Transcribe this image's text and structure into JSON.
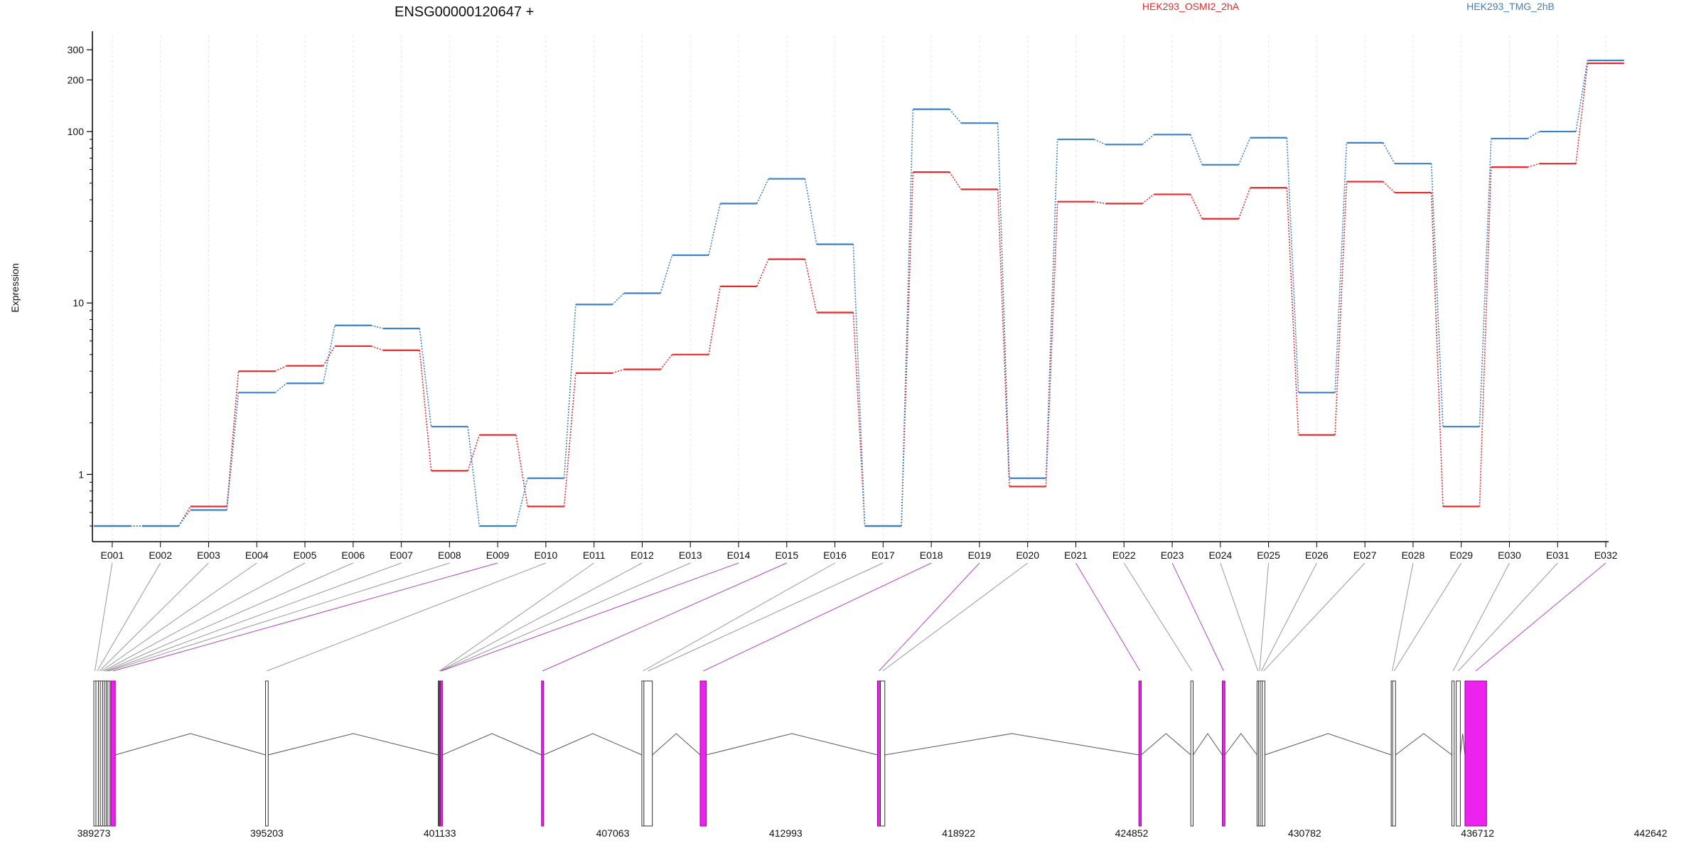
{
  "title": "ENSG00000120647 +",
  "ylabel": "Expression",
  "chart_data": {
    "type": "line",
    "title": "ENSG00000120647 +",
    "ylabel": "Expression",
    "y_scale": "log",
    "ylim": [
      0.5,
      330
    ],
    "grid": "vertical-dotted",
    "legend": "top-right",
    "yticks": [
      1,
      10,
      100,
      200,
      300
    ],
    "categories": [
      "E001",
      "E002",
      "E003",
      "E004",
      "E005",
      "E006",
      "E007",
      "E008",
      "E009",
      "E010",
      "E011",
      "E012",
      "E013",
      "E014",
      "E015",
      "E016",
      "E017",
      "E018",
      "E019",
      "E020",
      "E021",
      "E022",
      "E023",
      "E024",
      "E025",
      "E026",
      "E027",
      "E028",
      "E029",
      "E030",
      "E031",
      "E032"
    ],
    "series": [
      {
        "name": "HEK293_OSMI2_2hA",
        "color": "#e8282c",
        "values": [
          0.5,
          0.5,
          0.65,
          4.0,
          4.3,
          5.6,
          5.3,
          1.05,
          1.7,
          0.65,
          3.9,
          4.1,
          5.0,
          12.5,
          18.0,
          8.8,
          0.5,
          58,
          46,
          0.85,
          39,
          38,
          43,
          31,
          47,
          1.7,
          51,
          44,
          0.65,
          62,
          65,
          250
        ]
      },
      {
        "name": "HEK293_TMG_2hB",
        "color": "#3b82c4",
        "values": [
          0.5,
          0.5,
          0.62,
          3.0,
          3.4,
          7.4,
          7.1,
          1.9,
          0.5,
          0.95,
          9.8,
          11.4,
          19,
          38,
          53,
          22,
          0.5,
          135,
          112,
          0.95,
          90,
          84,
          96,
          64,
          92,
          3.0,
          86,
          65,
          1.9,
          91,
          100,
          260
        ]
      }
    ]
  },
  "genomic_axis": {
    "ticks": [
      "389273",
      "395203",
      "401133",
      "407063",
      "412993",
      "418922",
      "424852",
      "430782",
      "436712",
      "442642"
    ],
    "range": [
      389273,
      442642
    ]
  },
  "exon_map": {
    "highlight_color": "#ee22ee",
    "exon_color": "#ffffff",
    "line_color": "#555555",
    "highlight_link_color": "#b444c4",
    "exons": [
      {
        "id": "E001",
        "start": 389273,
        "end": 389345,
        "highlight": false
      },
      {
        "id": "E002",
        "start": 389345,
        "end": 389430,
        "highlight": false
      },
      {
        "id": "E003",
        "start": 389430,
        "end": 389495,
        "highlight": false
      },
      {
        "id": "E004",
        "start": 389495,
        "end": 389575,
        "highlight": false
      },
      {
        "id": "E005",
        "start": 389575,
        "end": 389640,
        "highlight": false
      },
      {
        "id": "E006",
        "start": 389640,
        "end": 389700,
        "highlight": false
      },
      {
        "id": "E007",
        "start": 389700,
        "end": 389755,
        "highlight": false
      },
      {
        "id": "E008",
        "start": 389755,
        "end": 389800,
        "highlight": false
      },
      {
        "id": "E009",
        "start": 389860,
        "end": 390010,
        "highlight": true
      },
      {
        "id": "E010",
        "start": 395160,
        "end": 395250,
        "highlight": false
      },
      {
        "id": "E011",
        "start": 401080,
        "end": 401110,
        "highlight": false
      },
      {
        "id": "E012",
        "start": 401110,
        "end": 401130,
        "highlight": false
      },
      {
        "id": "E013",
        "start": 401130,
        "end": 401150,
        "highlight": false
      },
      {
        "id": "E014",
        "start": 401150,
        "end": 401170,
        "highlight": true
      },
      {
        "id": "E015",
        "start": 404620,
        "end": 404680,
        "highlight": true
      },
      {
        "id": "E016",
        "start": 408060,
        "end": 408130,
        "highlight": false
      },
      {
        "id": "E017",
        "start": 408130,
        "end": 408420,
        "highlight": false
      },
      {
        "id": "E018",
        "start": 410060,
        "end": 410270,
        "highlight": true
      },
      {
        "id": "E019",
        "start": 416140,
        "end": 416240,
        "highlight": true
      },
      {
        "id": "E020",
        "start": 416240,
        "end": 416390,
        "highlight": false
      },
      {
        "id": "E021",
        "start": 425100,
        "end": 425180,
        "highlight": true
      },
      {
        "id": "E022",
        "start": 426880,
        "end": 426960,
        "highlight": false
      },
      {
        "id": "E023",
        "start": 427960,
        "end": 428050,
        "highlight": true
      },
      {
        "id": "E024",
        "start": 429150,
        "end": 429200,
        "highlight": false
      },
      {
        "id": "E025",
        "start": 429200,
        "end": 429260,
        "highlight": false
      },
      {
        "id": "E026",
        "start": 429260,
        "end": 429330,
        "highlight": false
      },
      {
        "id": "E027",
        "start": 429330,
        "end": 429420,
        "highlight": false
      },
      {
        "id": "E028",
        "start": 433750,
        "end": 433800,
        "highlight": false
      },
      {
        "id": "E029",
        "start": 433800,
        "end": 433900,
        "highlight": false
      },
      {
        "id": "E030",
        "start": 435830,
        "end": 435910,
        "highlight": false
      },
      {
        "id": "E031",
        "start": 435980,
        "end": 436120,
        "highlight": false
      },
      {
        "id": "E032",
        "start": 436280,
        "end": 437020,
        "highlight": true
      }
    ]
  }
}
